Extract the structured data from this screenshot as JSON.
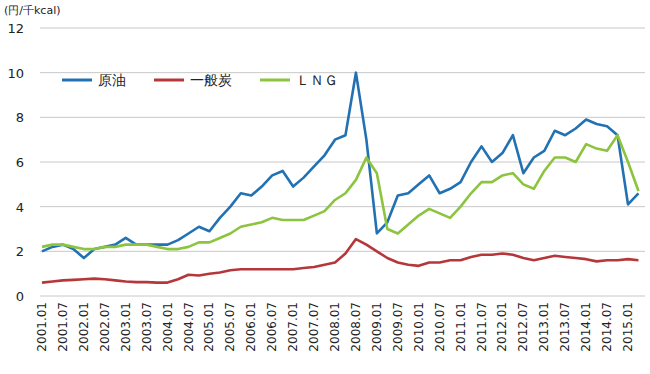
{
  "chart_data": {
    "type": "line",
    "y_label": "(円/千kcal)",
    "categories": [
      "2001.01",
      null,
      "2001.07",
      null,
      "2002.01",
      null,
      "2002.07",
      null,
      "2003.01",
      null,
      "2003.07",
      null,
      "2004.01",
      null,
      "2004.07",
      null,
      "2005.01",
      null,
      "2005.07",
      null,
      "2006.01",
      null,
      "2006.07",
      null,
      "2007.01",
      null,
      "2007.07",
      null,
      "2008.01",
      null,
      "2008.07",
      null,
      "2009.01",
      null,
      "2009.07",
      null,
      "2010.01",
      null,
      "2010.07",
      null,
      "2011.01",
      null,
      "2011.07",
      null,
      "2012.01",
      null,
      "2012.07",
      null,
      "2013.01",
      null,
      "2013.07",
      null,
      "2014.01",
      null,
      "2014.07",
      null,
      "2015.01",
      null
    ],
    "series": [
      {
        "name": "原油",
        "color": "#2271b3",
        "values": [
          2.0,
          2.2,
          2.3,
          2.1,
          1.7,
          2.1,
          2.2,
          2.3,
          2.6,
          2.3,
          2.3,
          2.3,
          2.3,
          2.5,
          2.8,
          3.1,
          2.9,
          3.5,
          4.0,
          4.6,
          4.5,
          4.9,
          5.4,
          5.6,
          4.9,
          5.3,
          5.8,
          6.3,
          7.0,
          7.2,
          10.0,
          7.0,
          2.8,
          3.3,
          4.5,
          4.6,
          5.0,
          5.4,
          4.6,
          4.8,
          5.1,
          6.0,
          6.7,
          6.0,
          6.4,
          7.2,
          5.5,
          6.2,
          6.5,
          7.4,
          7.2,
          7.5,
          7.9,
          7.7,
          7.6,
          7.2,
          4.1,
          4.6
        ]
      },
      {
        "name": "一般炭",
        "color": "#b5373a",
        "values": [
          0.6,
          0.65,
          0.7,
          0.72,
          0.75,
          0.78,
          0.75,
          0.7,
          0.65,
          0.62,
          0.62,
          0.6,
          0.6,
          0.75,
          0.95,
          0.92,
          1.0,
          1.05,
          1.15,
          1.2,
          1.2,
          1.2,
          1.2,
          1.2,
          1.2,
          1.25,
          1.3,
          1.4,
          1.5,
          1.9,
          2.55,
          2.3,
          2.0,
          1.7,
          1.5,
          1.4,
          1.35,
          1.5,
          1.5,
          1.6,
          1.6,
          1.75,
          1.85,
          1.85,
          1.9,
          1.85,
          1.7,
          1.6,
          1.7,
          1.8,
          1.75,
          1.7,
          1.65,
          1.55,
          1.6,
          1.6,
          1.65,
          1.6
        ]
      },
      {
        "name": "ＬＮＧ",
        "color": "#8cc43f",
        "values": [
          2.2,
          2.3,
          2.3,
          2.2,
          2.1,
          2.1,
          2.2,
          2.2,
          2.3,
          2.3,
          2.3,
          2.2,
          2.1,
          2.1,
          2.2,
          2.4,
          2.4,
          2.6,
          2.8,
          3.1,
          3.2,
          3.3,
          3.5,
          3.4,
          3.4,
          3.4,
          3.6,
          3.8,
          4.3,
          4.6,
          5.2,
          6.2,
          5.5,
          3.0,
          2.8,
          3.2,
          3.6,
          3.9,
          3.7,
          3.5,
          4.0,
          4.6,
          5.1,
          5.1,
          5.4,
          5.5,
          5.0,
          4.8,
          5.6,
          6.2,
          6.2,
          6.0,
          6.8,
          6.6,
          6.5,
          7.2,
          6.0,
          4.7
        ]
      }
    ],
    "ylim": [
      0,
      12
    ],
    "yticks": [
      0,
      2,
      4,
      6,
      8,
      10,
      12
    ],
    "grid": true,
    "legend": "upper left"
  }
}
